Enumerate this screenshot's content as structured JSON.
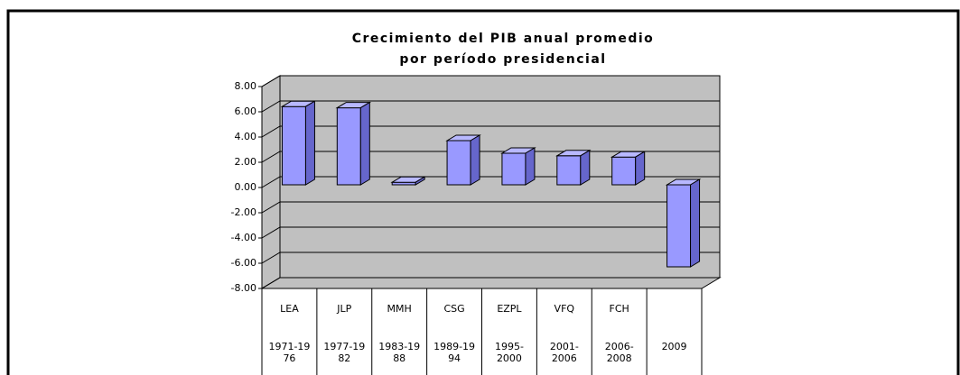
{
  "chart_data": {
    "type": "bar3d",
    "title": [
      "Crecimiento del PIB anual promedio",
      "por período presidencial"
    ],
    "categories": [
      "LEA",
      "JLP",
      "MMH",
      "CSG",
      "EZPL",
      "VFQ",
      "FCH",
      null
    ],
    "periods": [
      [
        "1971-19",
        "76"
      ],
      [
        "1977-19",
        "82"
      ],
      [
        "1983-19",
        "88"
      ],
      [
        "1989-19",
        "94"
      ],
      [
        "1995-",
        "2000"
      ],
      [
        "2001-",
        "2006"
      ],
      [
        "2006-",
        "2008"
      ],
      [
        "2009"
      ]
    ],
    "values": [
      6.2,
      6.1,
      0.2,
      3.5,
      2.5,
      2.3,
      2.2,
      -6.5
    ],
    "color": "#9999ff",
    "ylim": [
      -8,
      8
    ],
    "yticks": [
      {
        "value": -8,
        "label": "-8.00"
      },
      {
        "value": -6,
        "label": "-6.00"
      },
      {
        "value": -4,
        "label": "-4.00"
      },
      {
        "value": -2,
        "label": "-2.00"
      },
      {
        "value": 0,
        "label": "0.00"
      },
      {
        "value": 2,
        "label": "2.00"
      },
      {
        "value": 4,
        "label": "4.00"
      },
      {
        "value": 6,
        "label": "6.00"
      },
      {
        "value": 8,
        "label": "8.00"
      }
    ],
    "grid": true
  }
}
